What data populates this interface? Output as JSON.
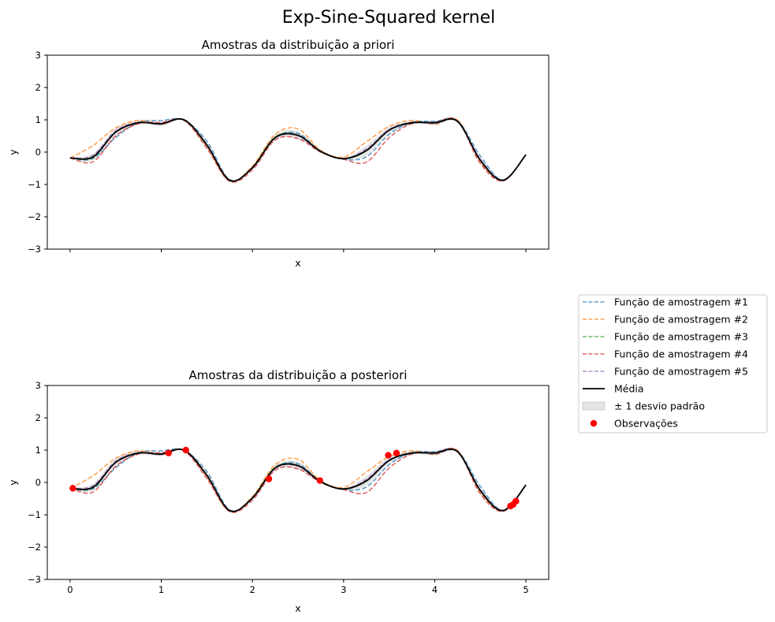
{
  "figure": {
    "suptitle": "Exp-Sine-Squared kernel"
  },
  "legend": {
    "placement": "right of plots, middle",
    "entries": [
      {
        "label": "Função de amostragem #1",
        "kind": "dashed",
        "color": "#1f77b4"
      },
      {
        "label": "Função de amostragem #2",
        "kind": "dashed",
        "color": "#ff7f0e"
      },
      {
        "label": "Função de amostragem #3",
        "kind": "dashed",
        "color": "#2ca02c"
      },
      {
        "label": "Função de amostragem #4",
        "kind": "dashed",
        "color": "#d62728"
      },
      {
        "label": "Função de amostragem #5",
        "kind": "dashed",
        "color": "#9467bd"
      },
      {
        "label": "Média",
        "kind": "line",
        "color": "#000000"
      },
      {
        "label": "± 1 desvio padrão",
        "kind": "band",
        "color": "#c8c8c8"
      },
      {
        "label": "Observações",
        "kind": "marker",
        "color": "#ff0000"
      }
    ]
  },
  "chart_data": [
    {
      "type": "line",
      "title": "Amostras da distribuição a priori",
      "xlabel": "x",
      "ylabel": "y",
      "xlim": [
        -0.25,
        5.25
      ],
      "ylim": [
        -3,
        3
      ],
      "xticks": [
        0,
        1,
        2,
        3,
        4,
        5
      ],
      "xticklabels": [
        "",
        "",
        "",
        "",
        "",
        ""
      ],
      "yticks": [
        -3,
        -2,
        -1,
        0,
        1,
        2,
        3
      ],
      "grid": false,
      "x": [
        0.0,
        0.25,
        0.5,
        0.75,
        1.0,
        1.25,
        1.5,
        1.75,
        2.0,
        2.25,
        2.5,
        2.75,
        3.0,
        3.25,
        3.5,
        3.75,
        4.0,
        4.25,
        4.5,
        4.75,
        5.0
      ],
      "mean": [
        -0.18,
        -0.15,
        0.62,
        0.91,
        0.88,
        1.0,
        0.22,
        -0.87,
        -0.48,
        0.45,
        0.52,
        0.02,
        -0.2,
        0.05,
        0.68,
        0.91,
        0.91,
        0.95,
        -0.25,
        -0.87,
        -0.08
      ],
      "std": [
        0.02,
        0.1,
        0.12,
        0.06,
        0.06,
        0.03,
        0.1,
        0.03,
        0.04,
        0.08,
        0.12,
        0.05,
        0.02,
        0.15,
        0.1,
        0.06,
        0.06,
        0.03,
        0.08,
        0.03,
        0.02
      ],
      "series": [
        {
          "name": "Função de amostragem #1",
          "values": [
            -0.18,
            -0.2,
            0.45,
            0.92,
            0.98,
            0.99,
            0.34,
            -0.85,
            -0.5,
            0.45,
            0.58,
            0.02,
            -0.22,
            -0.14,
            0.55,
            0.92,
            0.95,
            0.98,
            -0.12,
            -0.86,
            -0.08
          ]
        },
        {
          "name": "Função de amostragem #2",
          "values": [
            -0.18,
            0.2,
            0.75,
            0.98,
            0.86,
            1.0,
            0.18,
            -0.89,
            -0.43,
            0.55,
            0.72,
            0.05,
            -0.15,
            0.32,
            0.8,
            0.98,
            0.86,
            0.99,
            -0.3,
            -0.88,
            -0.08
          ]
        },
        {
          "name": "Função de amostragem #3",
          "values": [
            -0.18,
            -0.17,
            0.62,
            0.9,
            0.88,
            1.0,
            0.22,
            -0.87,
            -0.47,
            0.47,
            0.52,
            0.03,
            -0.2,
            0.04,
            0.68,
            0.9,
            0.9,
            0.96,
            -0.25,
            -0.87,
            -0.08
          ]
        },
        {
          "name": "Função de amostragem #4",
          "values": [
            -0.18,
            -0.3,
            0.5,
            0.88,
            0.92,
            0.98,
            0.12,
            -0.9,
            -0.55,
            0.38,
            0.42,
            0.0,
            -0.22,
            -0.31,
            0.45,
            0.88,
            0.92,
            0.97,
            -0.35,
            -0.89,
            -0.08
          ]
        },
        {
          "name": "Função de amostragem #5",
          "values": [
            -0.18,
            -0.1,
            0.66,
            0.92,
            0.86,
            1.0,
            0.24,
            -0.86,
            -0.48,
            0.44,
            0.5,
            0.02,
            -0.2,
            0.1,
            0.7,
            0.92,
            0.88,
            0.95,
            -0.22,
            -0.86,
            -0.08
          ]
        }
      ]
    },
    {
      "type": "line",
      "title": "Amostras da distribuição a posteriori",
      "xlabel": "x",
      "ylabel": "y",
      "xlim": [
        -0.25,
        5.25
      ],
      "ylim": [
        -3,
        3
      ],
      "xticks": [
        0,
        1,
        2,
        3,
        4,
        5
      ],
      "xticklabels": [
        "0",
        "1",
        "2",
        "3",
        "4",
        "5"
      ],
      "yticks": [
        -3,
        -2,
        -1,
        0,
        1,
        2,
        3
      ],
      "grid": false,
      "x": [
        0.0,
        0.25,
        0.5,
        0.75,
        1.0,
        1.25,
        1.5,
        1.75,
        2.0,
        2.25,
        2.5,
        2.75,
        3.0,
        3.25,
        3.5,
        3.75,
        4.0,
        4.25,
        4.5,
        4.75,
        5.0
      ],
      "mean": [
        -0.18,
        -0.15,
        0.62,
        0.91,
        0.88,
        1.0,
        0.22,
        -0.87,
        -0.48,
        0.45,
        0.52,
        0.02,
        -0.2,
        0.05,
        0.68,
        0.91,
        0.91,
        0.95,
        -0.25,
        -0.87,
        -0.08
      ],
      "std": [
        0.02,
        0.1,
        0.12,
        0.06,
        0.06,
        0.03,
        0.1,
        0.03,
        0.04,
        0.08,
        0.12,
        0.05,
        0.02,
        0.15,
        0.1,
        0.06,
        0.06,
        0.03,
        0.08,
        0.03,
        0.02
      ],
      "series": [
        {
          "name": "Função de amostragem #1",
          "values": [
            -0.18,
            -0.2,
            0.45,
            0.92,
            0.98,
            0.99,
            0.34,
            -0.85,
            -0.5,
            0.45,
            0.58,
            0.02,
            -0.22,
            -0.14,
            0.55,
            0.92,
            0.95,
            0.98,
            -0.12,
            -0.86,
            -0.08
          ]
        },
        {
          "name": "Função de amostragem #2",
          "values": [
            -0.18,
            0.2,
            0.75,
            0.98,
            0.86,
            1.0,
            0.18,
            -0.89,
            -0.43,
            0.55,
            0.72,
            0.05,
            -0.15,
            0.32,
            0.8,
            0.98,
            0.86,
            0.99,
            -0.3,
            -0.88,
            -0.08
          ]
        },
        {
          "name": "Função de amostragem #3",
          "values": [
            -0.18,
            -0.17,
            0.62,
            0.9,
            0.88,
            1.0,
            0.22,
            -0.87,
            -0.47,
            0.47,
            0.52,
            0.03,
            -0.2,
            0.04,
            0.68,
            0.9,
            0.9,
            0.96,
            -0.25,
            -0.87,
            -0.08
          ]
        },
        {
          "name": "Função de amostragem #4",
          "values": [
            -0.18,
            -0.3,
            0.5,
            0.88,
            0.92,
            0.98,
            0.12,
            -0.9,
            -0.55,
            0.38,
            0.42,
            0.0,
            -0.22,
            -0.31,
            0.45,
            0.88,
            0.92,
            0.97,
            -0.35,
            -0.89,
            -0.08
          ]
        },
        {
          "name": "Função de amostragem #5",
          "values": [
            -0.18,
            -0.1,
            0.66,
            0.92,
            0.86,
            1.0,
            0.24,
            -0.86,
            -0.48,
            0.44,
            0.5,
            0.02,
            -0.2,
            0.1,
            0.7,
            0.92,
            0.88,
            0.95,
            -0.22,
            -0.86,
            -0.08
          ]
        }
      ],
      "observations": {
        "x": [
          0.03,
          1.08,
          1.27,
          2.18,
          2.74,
          3.49,
          3.58,
          4.83,
          4.86,
          4.89
        ],
        "y": [
          -0.18,
          0.91,
          1.0,
          0.11,
          0.06,
          0.84,
          0.91,
          -0.73,
          -0.68,
          -0.58
        ]
      }
    }
  ]
}
